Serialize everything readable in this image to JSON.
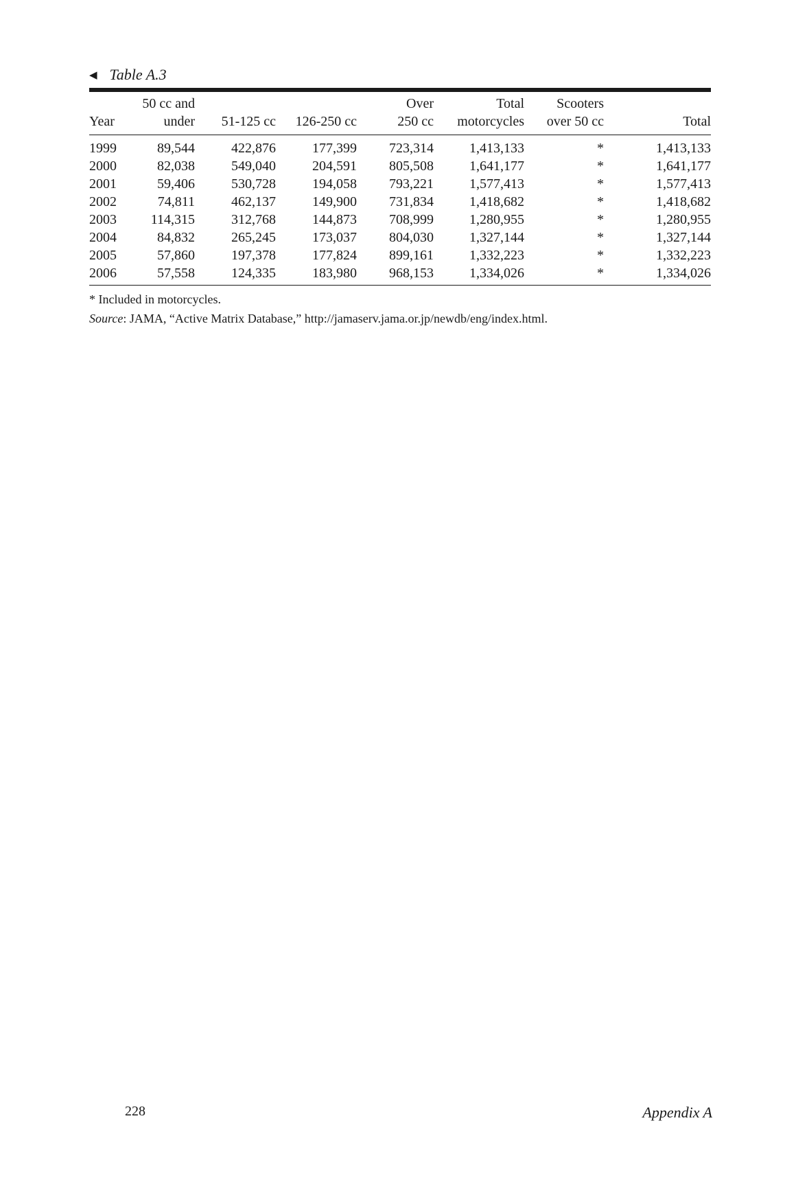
{
  "table": {
    "caption": "Table A.3",
    "arrow_icon": "left-triangle-icon",
    "headers": [
      [
        "",
        "Year"
      ],
      [
        "50 cc and",
        "under"
      ],
      [
        "",
        "51-125 cc"
      ],
      [
        "",
        "126-250 cc"
      ],
      [
        "Over",
        "250 cc"
      ],
      [
        "Total",
        "motorcycles"
      ],
      [
        "Scooters",
        "over 50 cc"
      ],
      [
        "",
        "Total"
      ]
    ],
    "rows": [
      [
        "1999",
        "89,544",
        "422,876",
        "177,399",
        "723,314",
        "1,413,133",
        "*",
        "1,413,133"
      ],
      [
        "2000",
        "82,038",
        "549,040",
        "204,591",
        "805,508",
        "1,641,177",
        "*",
        "1,641,177"
      ],
      [
        "2001",
        "59,406",
        "530,728",
        "194,058",
        "793,221",
        "1,577,413",
        "*",
        "1,577,413"
      ],
      [
        "2002",
        "74,811",
        "462,137",
        "149,900",
        "731,834",
        "1,418,682",
        "*",
        "1,418,682"
      ],
      [
        "2003",
        "114,315",
        "312,768",
        "144,873",
        "708,999",
        "1,280,955",
        "*",
        "1,280,955"
      ],
      [
        "2004",
        "84,832",
        "265,245",
        "173,037",
        "804,030",
        "1,327,144",
        "*",
        "1,327,144"
      ],
      [
        "2005",
        "57,860",
        "197,378",
        "177,824",
        "899,161",
        "1,332,223",
        "*",
        "1,332,223"
      ],
      [
        "2006",
        "57,558",
        "124,335",
        "183,980",
        "968,153",
        "1,334,026",
        "*",
        "1,334,026"
      ]
    ],
    "footnote": "*  Included in motorcycles.",
    "source_label": "Source",
    "source_text": ": JAMA, “Active Matrix Database,” http://jamaserv.jama.or.jp/newdb/eng/index.html."
  },
  "footer": {
    "page_number": "228",
    "section": "Appendix A"
  }
}
